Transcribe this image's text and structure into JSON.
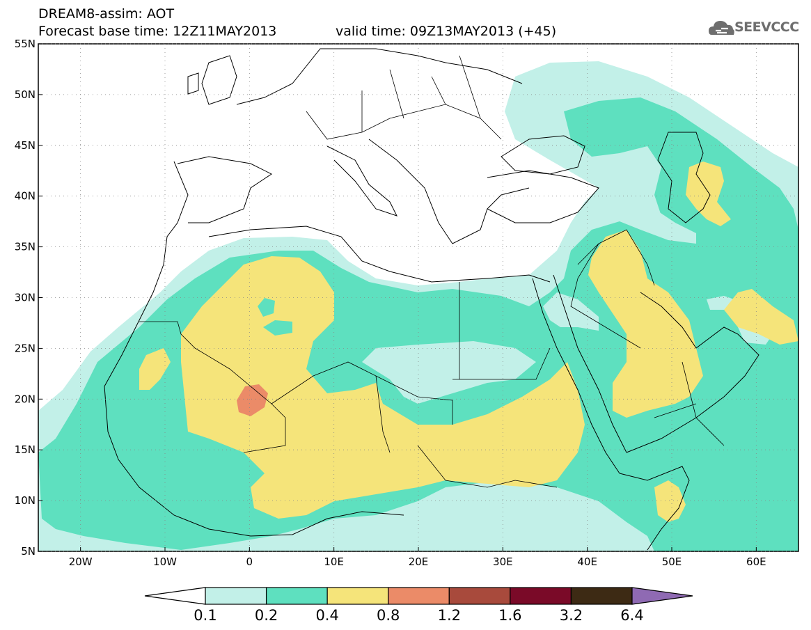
{
  "header": {
    "line1": "DREAM8-assim: AOT",
    "base_time": "Forecast base time: 12Z11MAY2013",
    "valid_time": "valid time: 09Z13MAY2013 (+45)",
    "logo_text": "SEEVCCC"
  },
  "map": {
    "lon_range": [
      -25,
      65
    ],
    "lat_range": [
      5,
      55
    ],
    "lon_ticks": [
      {
        "v": -20,
        "label": "20W"
      },
      {
        "v": -10,
        "label": "10W"
      },
      {
        "v": 0,
        "label": "0"
      },
      {
        "v": 10,
        "label": "10E"
      },
      {
        "v": 20,
        "label": "20E"
      },
      {
        "v": 30,
        "label": "30E"
      },
      {
        "v": 40,
        "label": "40E"
      },
      {
        "v": 50,
        "label": "50E"
      },
      {
        "v": 60,
        "label": "60E"
      }
    ],
    "lat_ticks": [
      {
        "v": 5,
        "label": "5N"
      },
      {
        "v": 10,
        "label": "10N"
      },
      {
        "v": 15,
        "label": "15N"
      },
      {
        "v": 20,
        "label": "20N"
      },
      {
        "v": 25,
        "label": "25N"
      },
      {
        "v": 30,
        "label": "30N"
      },
      {
        "v": 35,
        "label": "35N"
      },
      {
        "v": 40,
        "label": "40N"
      },
      {
        "v": 45,
        "label": "45N"
      },
      {
        "v": 50,
        "label": "50N"
      },
      {
        "v": 55,
        "label": "55N"
      }
    ],
    "field": "AOT"
  },
  "colorbar": {
    "labels": [
      "0.1",
      "0.2",
      "0.4",
      "0.8",
      "1.2",
      "1.6",
      "3.2",
      "6.4"
    ],
    "colors": [
      "#ffffff",
      "#c2f0e8",
      "#5ee0bf",
      "#f5e47a",
      "#eb8b68",
      "#a84a3c",
      "#7a0a28",
      "#3d2a14",
      "#8f6ab3"
    ]
  },
  "colors": {
    "c01": "#c2f0e8",
    "c02": "#5ee0bf",
    "c04": "#f5e47a",
    "c08": "#eb8b68"
  }
}
